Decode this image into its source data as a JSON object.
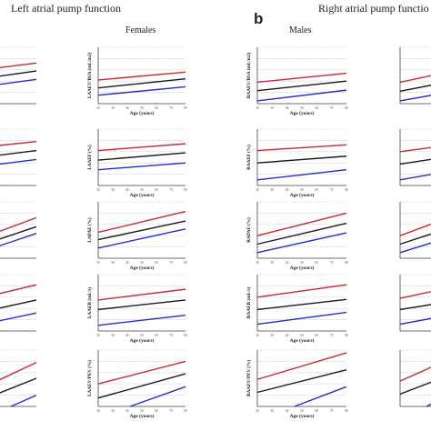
{
  "header": {
    "left_title": "Left atrial pump function",
    "right_title": "Right atrial pump functio",
    "panel_b_label": "b",
    "col_females": "Females",
    "col_males": "Males"
  },
  "colors": {
    "line_red": "#cc2a2a",
    "line_black": "#1a1a1a",
    "line_blue": "#2a2ad0",
    "grid": "#c8c8c8",
    "axis": "#444444"
  },
  "chart_data": {
    "type": "line",
    "xlabel": "Age (years)",
    "xlim": [
      20,
      80
    ],
    "x": [
      20,
      80
    ],
    "ylim": [
      0,
      1
    ],
    "grid": true,
    "series_colors": [
      "#cc2a2a",
      "#1a1a1a",
      "#2a2ad0"
    ],
    "panels": [
      {
        "id": "lf_laaef_bsa",
        "ylabel": "LAAEV/BSA (mL/m2)",
        "series": [
          {
            "values": [
              0.42,
              0.56
            ]
          },
          {
            "values": [
              0.28,
              0.44
            ]
          },
          {
            "values": [
              0.15,
              0.3
            ]
          }
        ]
      },
      {
        "id": "m_raaev_bsa",
        "ylabel": "RAAEV/BSA (mL/m2)",
        "series": [
          {
            "values": [
              0.38,
              0.54
            ]
          },
          {
            "values": [
              0.23,
              0.4
            ]
          },
          {
            "values": [
              0.05,
              0.24
            ]
          }
        ]
      },
      {
        "id": "lf_laaef",
        "ylabel": "LAAEF (%)",
        "series": [
          {
            "values": [
              0.62,
              0.74
            ]
          },
          {
            "values": [
              0.45,
              0.58
            ]
          },
          {
            "values": [
              0.28,
              0.4
            ]
          }
        ]
      },
      {
        "id": "m_raaef",
        "ylabel": "RAAEF (%)",
        "series": [
          {
            "values": [
              0.62,
              0.72
            ]
          },
          {
            "values": [
              0.4,
              0.52
            ]
          },
          {
            "values": [
              0.1,
              0.28
            ]
          }
        ]
      },
      {
        "id": "lf_lapae",
        "ylabel": "LAPAE (%)",
        "series": [
          {
            "values": [
              0.46,
              0.83
            ]
          },
          {
            "values": [
              0.33,
              0.66
            ]
          },
          {
            "values": [
              0.18,
              0.52
            ]
          }
        ]
      },
      {
        "id": "m_rapae",
        "ylabel": "RAPAE (%)",
        "series": [
          {
            "values": [
              0.4,
              0.8
            ]
          },
          {
            "values": [
              0.25,
              0.62
            ]
          },
          {
            "values": [
              0.1,
              0.45
            ]
          }
        ]
      },
      {
        "id": "lf_laaer",
        "ylabel": "LAAER (mL/s)",
        "series": [
          {
            "values": [
              0.55,
              0.74
            ]
          },
          {
            "values": [
              0.38,
              0.55
            ]
          },
          {
            "values": [
              0.1,
              0.28
            ]
          }
        ]
      },
      {
        "id": "m_raaer",
        "ylabel": "RAAER (mL/s)",
        "series": [
          {
            "values": [
              0.6,
              0.82
            ]
          },
          {
            "values": [
              0.38,
              0.56
            ]
          },
          {
            "values": [
              0.12,
              0.33
            ]
          }
        ]
      },
      {
        "id": "lf_laaev_pev",
        "ylabel": "LAAEV/PEV (%)",
        "series": [
          {
            "values": [
              0.4,
              0.8
            ]
          },
          {
            "values": [
              0.15,
              0.58
            ]
          },
          {
            "values": [
              -0.2,
              0.35
            ]
          }
        ]
      },
      {
        "id": "m_raaev_pev",
        "ylabel": "RAAEV/PEV (%)",
        "series": [
          {
            "values": [
              0.48,
              0.95
            ]
          },
          {
            "values": [
              0.25,
              0.65
            ]
          },
          {
            "values": [
              -0.25,
              0.35
            ]
          }
        ]
      }
    ],
    "partial_panels": [
      {
        "side": "left",
        "series": [
          {
            "values": [
              0.58,
              0.72
            ]
          },
          {
            "values": [
              0.42,
              0.58
            ]
          },
          {
            "values": [
              0.28,
              0.43
            ]
          }
        ]
      },
      {
        "side": "left",
        "series": [
          {
            "values": [
              0.66,
              0.78
            ]
          },
          {
            "values": [
              0.48,
              0.62
            ]
          },
          {
            "values": [
              0.32,
              0.46
            ]
          }
        ]
      },
      {
        "side": "left",
        "series": [
          {
            "values": [
              0.3,
              0.72
            ]
          },
          {
            "values": [
              0.18,
              0.56
            ]
          },
          {
            "values": [
              0.06,
              0.44
            ]
          }
        ]
      },
      {
        "side": "left",
        "series": [
          {
            "values": [
              0.55,
              0.82
            ]
          },
          {
            "values": [
              0.3,
              0.55
            ]
          },
          {
            "values": [
              0.08,
              0.32
            ]
          }
        ]
      },
      {
        "side": "left",
        "series": [
          {
            "values": [
              0.25,
              0.78
            ]
          },
          {
            "values": [
              0.05,
              0.5
            ]
          },
          {
            "values": [
              -0.3,
              0.2
            ]
          }
        ]
      },
      {
        "side": "right",
        "series": [
          {
            "values": [
              0.38,
              0.62
            ]
          },
          {
            "values": [
              0.22,
              0.44
            ]
          },
          {
            "values": [
              0.05,
              0.25
            ]
          }
        ]
      },
      {
        "side": "right",
        "series": [
          {
            "values": [
              0.6,
              0.75
            ]
          },
          {
            "values": [
              0.38,
              0.55
            ]
          },
          {
            "values": [
              0.1,
              0.3
            ]
          }
        ]
      },
      {
        "side": "right",
        "series": [
          {
            "values": [
              0.4,
              0.82
            ]
          },
          {
            "values": [
              0.25,
              0.62
            ]
          },
          {
            "values": [
              0.1,
              0.45
            ]
          }
        ]
      },
      {
        "side": "right",
        "series": [
          {
            "values": [
              0.58,
              0.82
            ]
          },
          {
            "values": [
              0.38,
              0.56
            ]
          },
          {
            "values": [
              0.12,
              0.33
            ]
          }
        ]
      },
      {
        "side": "right",
        "series": [
          {
            "values": [
              0.45,
              0.95
            ]
          },
          {
            "values": [
              0.22,
              0.65
            ]
          },
          {
            "values": [
              -0.25,
              0.35
            ]
          }
        ]
      }
    ]
  }
}
